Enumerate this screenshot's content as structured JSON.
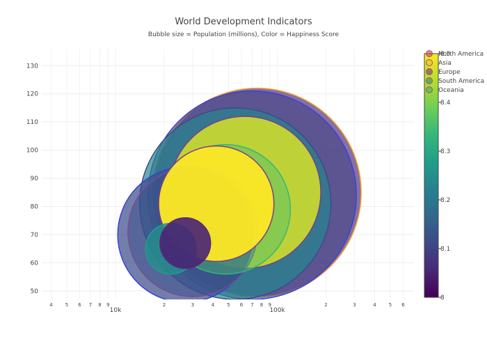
{
  "chart_data": {
    "type": "scatter",
    "title": "World Development Indicators",
    "subtitle": "Bubble size = Population (millions), Color = Happiness Score",
    "xlabel": "",
    "ylabel": "",
    "x_scale": "log",
    "xlim": [
      3500,
      700000
    ],
    "ylim": [
      47,
      136
    ],
    "y_ticks": [
      50,
      60,
      70,
      80,
      90,
      100,
      110,
      120,
      130
    ],
    "x_major_ticks": [
      {
        "value": 10000,
        "label": "10k"
      },
      {
        "value": 100000,
        "label": "100k"
      }
    ],
    "x_minor_ticks": [
      {
        "value": 4000,
        "label": "4"
      },
      {
        "value": 5000,
        "label": "5"
      },
      {
        "value": 6000,
        "label": "6"
      },
      {
        "value": 7000,
        "label": "7"
      },
      {
        "value": 8000,
        "label": "8"
      },
      {
        "value": 9000,
        "label": "9"
      },
      {
        "value": 20000,
        "label": "2"
      },
      {
        "value": 30000,
        "label": "3"
      },
      {
        "value": 40000,
        "label": "4"
      },
      {
        "value": 50000,
        "label": "5"
      },
      {
        "value": 60000,
        "label": "6"
      },
      {
        "value": 70000,
        "label": "7"
      },
      {
        "value": 80000,
        "label": "8"
      },
      {
        "value": 90000,
        "label": "9"
      },
      {
        "value": 200000,
        "label": "2"
      },
      {
        "value": 300000,
        "label": "3"
      },
      {
        "value": 400000,
        "label": "4"
      },
      {
        "value": 500000,
        "label": "5"
      },
      {
        "value": 600000,
        "label": "6"
      }
    ],
    "legend": [
      "North America",
      "Asia",
      "Europe",
      "South America",
      "Oceania"
    ],
    "legend_position": "top-right",
    "colorbar": {
      "min": 8.0,
      "max": 8.5,
      "ticks": [
        {
          "value": 8.0,
          "label": "8"
        },
        {
          "value": 8.1,
          "label": "8.1"
        },
        {
          "value": 8.2,
          "label": "8.2"
        },
        {
          "value": 8.3,
          "label": "8.3"
        },
        {
          "value": 8.4,
          "label": "8.4"
        },
        {
          "value": 8.5,
          "label": "8.5"
        }
      ],
      "colorscale": [
        "#440154",
        "#482878",
        "#3e4989",
        "#31688e",
        "#26828e",
        "#1f9e89",
        "#35b779",
        "#6ece58",
        "#b5de2b",
        "#fde725"
      ]
    },
    "series": [
      {
        "name": "North America",
        "points": [
          {
            "x": 27000,
            "y": 70,
            "size_y": 24,
            "color": 8.12,
            "opacity": 0.72,
            "outline": "#3b40d8"
          }
        ]
      },
      {
        "name": "Asia",
        "points": [
          {
            "x": 30000,
            "y": 71,
            "size_y": 23,
            "color": 8.12,
            "opacity": 0.5,
            "outline": "#7a4c90"
          }
        ]
      },
      {
        "name": "Europe",
        "points": [
          {
            "x": 75000,
            "y": 85,
            "size_y": 37,
            "color": 8.05,
            "opacity": 0.65,
            "outline": "#f5a623"
          },
          {
            "x": 70000,
            "y": 84,
            "size_y": 37,
            "color": 8.1,
            "opacity": 0.6,
            "outline": "#3b40d8"
          }
        ]
      },
      {
        "name": "South America",
        "points": [
          {
            "x": 55000,
            "y": 81,
            "size_y": 34,
            "color": 8.23,
            "opacity": 0.7,
            "outline": "#3e4989"
          },
          {
            "x": 22000,
            "y": 65,
            "size_y": 9,
            "color": 8.25,
            "opacity": 0.8,
            "outline": "#1f9e89"
          },
          {
            "x": 48000,
            "y": 79,
            "size_y": 23,
            "color": 8.35,
            "opacity": 0.45,
            "outline": "#35b779"
          },
          {
            "x": 27000,
            "y": 67,
            "size_y": 9,
            "color": 8.05,
            "opacity": 0.9,
            "outline": "#5b2a7a"
          }
        ]
      },
      {
        "name": "Oceania",
        "points": [
          {
            "x": 63000,
            "y": 85,
            "size_y": 27,
            "color": 8.47,
            "opacity": 0.85,
            "outline": "#7a3d8c"
          },
          {
            "x": 42000,
            "y": 81,
            "size_y": 20.5,
            "color": 8.5,
            "opacity": 0.95,
            "outline": "#7a3d8c"
          }
        ]
      }
    ]
  }
}
